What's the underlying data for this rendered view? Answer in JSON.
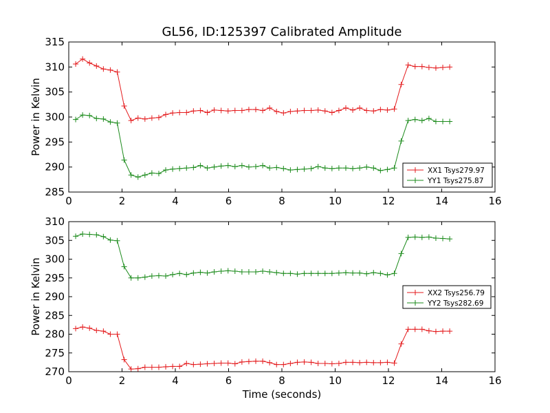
{
  "chart_data": {
    "title": "GL56, ID:125397 Calibrated Amplitude",
    "xlabel": "Time (seconds)",
    "colors": {
      "red": "#e41a1c",
      "green": "#1a8a1a"
    },
    "x": [
      0.26,
      0.52,
      0.78,
      1.04,
      1.3,
      1.56,
      1.82,
      2.08,
      2.34,
      2.6,
      2.86,
      3.12,
      3.38,
      3.64,
      3.9,
      4.16,
      4.42,
      4.68,
      4.94,
      5.2,
      5.46,
      5.72,
      5.98,
      6.24,
      6.5,
      6.76,
      7.02,
      7.28,
      7.54,
      7.8,
      8.06,
      8.32,
      8.58,
      8.84,
      9.1,
      9.36,
      9.62,
      9.88,
      10.14,
      10.4,
      10.66,
      10.92,
      11.18,
      11.44,
      11.7,
      11.96,
      12.22,
      12.48,
      12.74,
      13.0,
      13.26,
      13.52,
      13.78,
      14.04,
      14.3
    ],
    "charts": [
      {
        "type": "line",
        "ylabel": "Power in Kelvin",
        "xlim": [
          0,
          16
        ],
        "ylim": [
          285,
          315
        ],
        "xticks": [
          "0",
          "2",
          "4",
          "6",
          "8",
          "10",
          "12",
          "14",
          "16"
        ],
        "yticks": [
          "285",
          "290",
          "295",
          "300",
          "305",
          "310",
          "315"
        ],
        "legend_position": "lower-right",
        "series": [
          {
            "name": "XX1 Tsys279.97",
            "color": "red",
            "values": [
              310.6,
              311.6,
              310.8,
              310.2,
              309.6,
              309.4,
              309.0,
              302.2,
              299.3,
              299.8,
              299.6,
              299.8,
              299.9,
              300.5,
              300.8,
              300.9,
              300.9,
              301.2,
              301.3,
              300.9,
              301.4,
              301.3,
              301.2,
              301.3,
              301.3,
              301.5,
              301.5,
              301.3,
              301.8,
              301.1,
              300.8,
              301.1,
              301.2,
              301.3,
              301.3,
              301.4,
              301.2,
              300.9,
              301.3,
              301.8,
              301.4,
              301.8,
              301.3,
              301.2,
              301.5,
              301.4,
              301.6,
              306.5,
              310.4,
              310.1,
              310.1,
              309.9,
              309.8,
              309.9,
              310.0
            ]
          },
          {
            "name": "YY1 Tsys275.87",
            "color": "green",
            "values": [
              299.5,
              300.4,
              300.3,
              299.7,
              299.6,
              299.0,
              298.8,
              291.4,
              288.4,
              288.0,
              288.4,
              288.8,
              288.7,
              289.4,
              289.6,
              289.7,
              289.8,
              289.9,
              290.3,
              289.8,
              290.0,
              290.2,
              290.3,
              290.1,
              290.3,
              290.0,
              290.1,
              290.3,
              289.8,
              289.9,
              289.7,
              289.4,
              289.5,
              289.6,
              289.7,
              290.1,
              289.8,
              289.7,
              289.8,
              289.8,
              289.7,
              289.8,
              290.0,
              289.8,
              289.3,
              289.5,
              289.8,
              295.2,
              299.3,
              299.5,
              299.3,
              299.7,
              299.1,
              299.1,
              299.1
            ]
          }
        ]
      },
      {
        "type": "line",
        "ylabel": "Power in Kelvin",
        "xlim": [
          0,
          16
        ],
        "ylim": [
          270,
          310
        ],
        "xticks": [
          "0",
          "2",
          "4",
          "6",
          "8",
          "10",
          "12",
          "14",
          "16"
        ],
        "yticks": [
          "270",
          "275",
          "280",
          "285",
          "290",
          "295",
          "300",
          "305",
          "310"
        ],
        "legend_position": "center-right",
        "series": [
          {
            "name": "XX2 Tsys256.79",
            "color": "red",
            "values": [
              281.5,
              281.9,
              281.6,
              281.0,
              280.8,
              280.0,
              280.0,
              273.2,
              270.7,
              270.8,
              271.2,
              271.2,
              271.2,
              271.3,
              271.4,
              271.4,
              272.2,
              271.9,
              272.0,
              272.1,
              272.2,
              272.3,
              272.3,
              272.1,
              272.6,
              272.7,
              272.8,
              272.8,
              272.4,
              271.9,
              271.9,
              272.2,
              272.5,
              272.6,
              272.5,
              272.2,
              272.2,
              272.1,
              272.2,
              272.5,
              272.5,
              272.4,
              272.5,
              272.4,
              272.4,
              272.5,
              272.3,
              277.4,
              281.3,
              281.3,
              281.3,
              280.9,
              280.7,
              280.8,
              280.8
            ]
          },
          {
            "name": "YY2 Tsys282.69",
            "color": "green",
            "values": [
              306.1,
              306.7,
              306.6,
              306.5,
              306.0,
              305.1,
              304.9,
              298.0,
              295.0,
              295.0,
              295.2,
              295.5,
              295.6,
              295.5,
              295.9,
              296.2,
              295.9,
              296.3,
              296.5,
              296.3,
              296.6,
              296.8,
              296.9,
              296.8,
              296.6,
              296.6,
              296.6,
              296.8,
              296.6,
              296.4,
              296.2,
              296.2,
              296.0,
              296.2,
              296.2,
              296.2,
              296.2,
              296.2,
              296.3,
              296.4,
              296.3,
              296.3,
              296.1,
              296.4,
              296.2,
              295.8,
              296.2,
              301.5,
              305.8,
              305.9,
              305.8,
              305.9,
              305.6,
              305.5,
              305.4
            ]
          }
        ]
      }
    ]
  }
}
